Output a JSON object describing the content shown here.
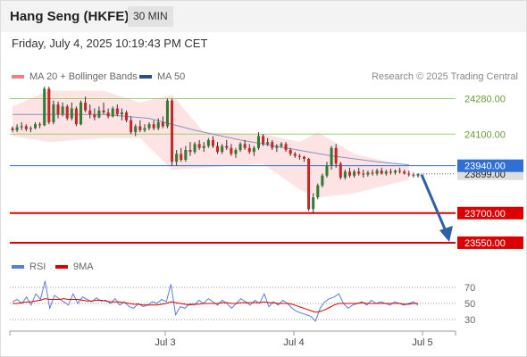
{
  "header": {
    "title": "Hang Seng (HKFE)",
    "interval": "30 MIN",
    "datetime": "Friday, July 4, 2025 10:19:43 PM CET"
  },
  "legend": {
    "ma20_label": "MA 20 + Bollinger Bands",
    "ma50_label": "MA 50",
    "credit": "Research © 2025 Trading Central",
    "rsi_label": "RSI",
    "ma9_label": "9MA"
  },
  "colors": {
    "bollinger": "#f08080",
    "bollinger_fill": "#fde3e3",
    "ma50": "#2a4d8f",
    "up_candle": "#2e7d32",
    "down_candle": "#c62828",
    "support": "#dd0000",
    "resistance": "#9bd26a",
    "pivot": "#2f6fd6",
    "rsi": "#5b7fd6",
    "rsi_ma": "#dd0000",
    "arrow": "#2f5fa8"
  },
  "chart_data": [
    {
      "type": "candlestick",
      "title": "Hang Seng (HKFE)",
      "interval": "30 MIN",
      "x_ticks": [
        "Jul 3",
        "Jul 4",
        "Jul 5"
      ],
      "y_range": [
        23500,
        24350
      ],
      "levels": [
        {
          "label": "24280.00",
          "value": 24280,
          "kind": "resistance"
        },
        {
          "label": "24100.00",
          "value": 24100,
          "kind": "resistance"
        },
        {
          "label": "23940.00",
          "value": 23940,
          "kind": "pivot"
        },
        {
          "label": "23700.00",
          "value": 23700,
          "kind": "support"
        },
        {
          "label": "23550.00",
          "value": 23550,
          "kind": "support"
        }
      ],
      "last_price": {
        "label": "23899.00",
        "value": 23899
      },
      "forecast": {
        "from": 23895,
        "to": 23550,
        "direction": "down"
      },
      "candles": [
        [
          24130,
          24140,
          24110,
          24120
        ],
        [
          24120,
          24150,
          24110,
          24135
        ],
        [
          24135,
          24160,
          24120,
          24140
        ],
        [
          24140,
          24150,
          24115,
          24125
        ],
        [
          24125,
          24140,
          24110,
          24130
        ],
        [
          24130,
          24160,
          24125,
          24150
        ],
        [
          24150,
          24160,
          24130,
          24145
        ],
        [
          24145,
          24340,
          24140,
          24330
        ],
        [
          24330,
          24340,
          24150,
          24160
        ],
        [
          24160,
          24270,
          24150,
          24250
        ],
        [
          24250,
          24265,
          24180,
          24200
        ],
        [
          24200,
          24260,
          24190,
          24240
        ],
        [
          24240,
          24250,
          24170,
          24180
        ],
        [
          24180,
          24260,
          24170,
          24230
        ],
        [
          24230,
          24240,
          24140,
          24150
        ],
        [
          24150,
          24270,
          24145,
          24260
        ],
        [
          24260,
          24290,
          24210,
          24220
        ],
        [
          24220,
          24250,
          24180,
          24200
        ],
        [
          24200,
          24230,
          24170,
          24185
        ],
        [
          24185,
          24240,
          24180,
          24220
        ],
        [
          24220,
          24260,
          24200,
          24210
        ],
        [
          24210,
          24230,
          24180,
          24190
        ],
        [
          24190,
          24240,
          24185,
          24230
        ],
        [
          24230,
          24250,
          24190,
          24200
        ],
        [
          24200,
          24230,
          24170,
          24210
        ],
        [
          24210,
          24220,
          24160,
          24170
        ],
        [
          24170,
          24190,
          24100,
          24110
        ],
        [
          24110,
          24150,
          24090,
          24140
        ],
        [
          24140,
          24170,
          24110,
          24120
        ],
        [
          24120,
          24150,
          24110,
          24130
        ],
        [
          24130,
          24160,
          24120,
          24150
        ],
        [
          24150,
          24170,
          24120,
          24130
        ],
        [
          24130,
          24180,
          24120,
          24160
        ],
        [
          24160,
          24190,
          24130,
          24140
        ],
        [
          24140,
          24280,
          24130,
          24270
        ],
        [
          24270,
          24280,
          23940,
          23960
        ],
        [
          23960,
          24020,
          23940,
          24000
        ],
        [
          24000,
          24030,
          23960,
          23970
        ],
        [
          23970,
          24040,
          23960,
          24020
        ],
        [
          24020,
          24060,
          23990,
          24010
        ],
        [
          24010,
          24060,
          24000,
          24050
        ],
        [
          24050,
          24070,
          24020,
          24030
        ],
        [
          24030,
          24060,
          24010,
          24040
        ],
        [
          24040,
          24080,
          24030,
          24070
        ],
        [
          24070,
          24090,
          24030,
          24040
        ],
        [
          24040,
          24060,
          24000,
          24010
        ],
        [
          24010,
          24050,
          24000,
          24040
        ],
        [
          24040,
          24070,
          24020,
          24030
        ],
        [
          24030,
          24050,
          23990,
          24000
        ],
        [
          24000,
          24030,
          23980,
          24020
        ],
        [
          24020,
          24060,
          24010,
          24050
        ],
        [
          24050,
          24070,
          24020,
          24030
        ],
        [
          24030,
          24050,
          24000,
          24010
        ],
        [
          24010,
          24040,
          23990,
          24030
        ],
        [
          24030,
          24110,
          24020,
          24090
        ],
        [
          24090,
          24100,
          24040,
          24050
        ],
        [
          24050,
          24080,
          24040,
          24060
        ],
        [
          24060,
          24070,
          24020,
          24030
        ],
        [
          24030,
          24050,
          24010,
          24040
        ],
        [
          24040,
          24060,
          24030,
          24050
        ],
        [
          24050,
          24060,
          24010,
          24020
        ],
        [
          24020,
          24030,
          23990,
          24000
        ],
        [
          24000,
          24010,
          23980,
          23990
        ],
        [
          23990,
          24000,
          23970,
          23985
        ],
        [
          23985,
          23990,
          23960,
          23975
        ],
        [
          23975,
          23980,
          23710,
          23720
        ],
        [
          23720,
          23800,
          23700,
          23780
        ],
        [
          23780,
          23850,
          23770,
          23840
        ],
        [
          23840,
          23900,
          23830,
          23890
        ],
        [
          23890,
          23960,
          23880,
          23940
        ],
        [
          23940,
          24040,
          23920,
          24030
        ],
        [
          24030,
          24050,
          23930,
          23950
        ],
        [
          23950,
          23960,
          23870,
          23880
        ],
        [
          23880,
          23920,
          23870,
          23910
        ],
        [
          23910,
          23930,
          23880,
          23890
        ],
        [
          23890,
          23920,
          23880,
          23910
        ],
        [
          23910,
          23930,
          23890,
          23900
        ],
        [
          23900,
          23920,
          23880,
          23895
        ],
        [
          23895,
          23915,
          23885,
          23905
        ],
        [
          23905,
          23920,
          23890,
          23900
        ],
        [
          23900,
          23925,
          23890,
          23915
        ],
        [
          23915,
          23930,
          23895,
          23900
        ],
        [
          23900,
          23920,
          23890,
          23910
        ],
        [
          23910,
          23925,
          23895,
          23905
        ],
        [
          23905,
          23920,
          23895,
          23915
        ],
        [
          23915,
          23930,
          23900,
          23910
        ],
        [
          23910,
          23920,
          23895,
          23900
        ],
        [
          23900,
          23915,
          23885,
          23895
        ],
        [
          23895,
          23905,
          23880,
          23890
        ],
        [
          23890,
          23900,
          23880,
          23899
        ]
      ],
      "ma50": [
        [
          0,
          24200
        ],
        [
          20,
          24200
        ],
        [
          30,
          24180
        ],
        [
          40,
          24120
        ],
        [
          50,
          24070
        ],
        [
          60,
          24030
        ],
        [
          70,
          23990
        ],
        [
          80,
          23960
        ],
        [
          87,
          23945
        ]
      ],
      "bollinger": {
        "upper": [
          [
            0,
            24240
          ],
          [
            8,
            24320
          ],
          [
            20,
            24320
          ],
          [
            28,
            24260
          ],
          [
            35,
            24300
          ],
          [
            42,
            24110
          ],
          [
            55,
            24100
          ],
          [
            63,
            24060
          ],
          [
            67,
            24110
          ],
          [
            75,
            24000
          ],
          [
            87,
            23935
          ]
        ],
        "lower": [
          [
            0,
            24090
          ],
          [
            8,
            24060
          ],
          [
            20,
            24080
          ],
          [
            28,
            24080
          ],
          [
            35,
            23920
          ],
          [
            42,
            23930
          ],
          [
            55,
            23950
          ],
          [
            63,
            23820
          ],
          [
            67,
            23780
          ],
          [
            75,
            23800
          ],
          [
            87,
            23870
          ]
        ]
      }
    },
    {
      "type": "line",
      "title": "RSI",
      "y_ticks": [
        "70",
        "50",
        "30"
      ],
      "series": [
        {
          "name": "RSI",
          "values": [
            52,
            55,
            50,
            58,
            48,
            62,
            55,
            78,
            44,
            60,
            56,
            52,
            48,
            62,
            50,
            58,
            55,
            52,
            57,
            53,
            54,
            50,
            56,
            48,
            52,
            46,
            44,
            50,
            46,
            48,
            52,
            50,
            55,
            52,
            74,
            36,
            46,
            44,
            50,
            48,
            54,
            50,
            56,
            52,
            48,
            54,
            50,
            44,
            50,
            56,
            52,
            48,
            54,
            50,
            62,
            46,
            52,
            48,
            54,
            50,
            44,
            40,
            38,
            36,
            34,
            28,
            44,
            52,
            56,
            58,
            62,
            50,
            44,
            48,
            50,
            52,
            48,
            54,
            50,
            52,
            50,
            48,
            52,
            50,
            48,
            50,
            52,
            48
          ]
        },
        {
          "name": "9MA",
          "values": [
            50,
            50,
            51,
            52,
            52,
            53,
            54,
            56,
            55,
            55,
            55,
            56,
            55,
            55,
            55,
            54,
            53,
            53,
            54,
            54,
            53,
            52,
            52,
            52,
            51,
            50,
            49,
            49,
            48,
            48,
            48,
            48,
            49,
            50,
            52,
            51,
            50,
            49,
            48,
            49,
            49,
            50,
            50,
            50,
            50,
            51,
            51,
            50,
            50,
            51,
            51,
            51,
            51,
            51,
            52,
            51,
            51,
            50,
            50,
            50,
            49,
            47,
            45,
            43,
            41,
            39,
            40,
            42,
            45,
            48,
            50,
            50,
            50,
            50,
            50,
            51,
            50,
            50,
            50,
            50,
            50,
            50,
            50,
            50,
            49,
            49,
            50,
            50
          ]
        }
      ]
    }
  ]
}
